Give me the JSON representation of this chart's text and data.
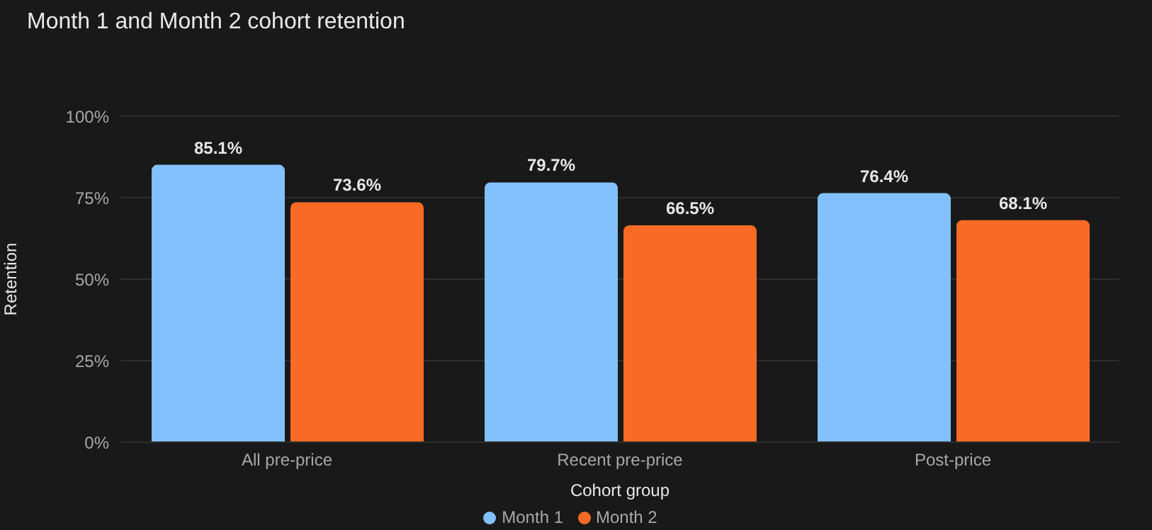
{
  "chart_data": {
    "type": "bar",
    "title": "Month 1 and Month 2 cohort retention",
    "xlabel": "Cohort group",
    "ylabel": "Retention",
    "categories": [
      "All pre-price",
      "Recent pre-price",
      "Post-price"
    ],
    "series": [
      {
        "name": "Month 1",
        "color": "#82c1fe",
        "values": [
          85.1,
          79.7,
          76.4
        ],
        "value_labels": [
          "85.1%",
          "79.7%",
          "76.4%"
        ]
      },
      {
        "name": "Month 2",
        "color": "#f96b24",
        "values": [
          73.6,
          66.5,
          68.1
        ],
        "value_labels": [
          "73.6%",
          "66.5%",
          "68.1%"
        ]
      }
    ],
    "ylim": [
      0,
      100
    ],
    "yticks": [
      {
        "value": 0,
        "label": "0%"
      },
      {
        "value": 25,
        "label": "25%"
      },
      {
        "value": 50,
        "label": "50%"
      },
      {
        "value": 75,
        "label": "75%"
      },
      {
        "value": 100,
        "label": "100%"
      }
    ],
    "grid": "y",
    "legend": "bottom"
  }
}
